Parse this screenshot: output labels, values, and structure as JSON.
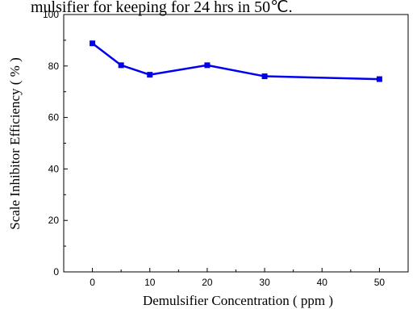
{
  "caption": "mulsifier for keeping for 24 hrs in 50℃.",
  "chart_data": {
    "type": "line",
    "title": "",
    "xlabel": "Demulsifier Concentration ( ppm )",
    "ylabel": "Scale Inhibitor Efficiency ( % )",
    "xlim": [
      -5,
      55
    ],
    "ylim": [
      0,
      100
    ],
    "x_ticks": [
      0,
      10,
      20,
      30,
      40,
      50
    ],
    "y_ticks": [
      0,
      20,
      40,
      60,
      80,
      100
    ],
    "grid": false,
    "legend": "none",
    "series": [
      {
        "color": "#0000ee",
        "marker": "square",
        "x": [
          0,
          5,
          10,
          20,
          30,
          50
        ],
        "y": [
          88.8,
          80.3,
          76.6,
          80.3,
          76.0,
          74.9
        ]
      }
    ]
  }
}
